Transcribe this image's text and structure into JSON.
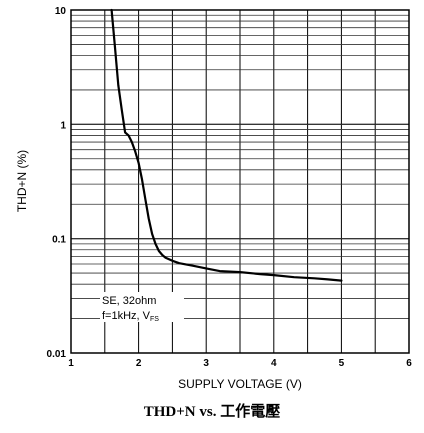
{
  "caption": "THD+N vs. 工作電壓",
  "chart_data": {
    "type": "line",
    "xlabel": "SUPPLY VOLTAGE (V)",
    "ylabel": "THD+N (%)",
    "xlim": [
      1,
      6
    ],
    "ylim": [
      0.01,
      10
    ],
    "yscale": "log",
    "xticks": [
      "1",
      "2",
      "3",
      "4",
      "5",
      "6"
    ],
    "yticks": [
      "0.01",
      "0.1",
      "1",
      "10"
    ],
    "grid": true,
    "annotation": {
      "line1": "SE, 32ohm",
      "line2_prefix": "f=1kHz, V",
      "line2_subscript": "FS"
    },
    "series": [
      {
        "x": [
          1.6,
          1.65,
          1.7,
          1.75,
          1.8,
          1.85,
          1.9,
          1.95,
          2.0,
          2.05,
          2.1,
          2.15,
          2.2,
          2.25,
          2.3,
          2.35,
          2.4,
          2.5,
          2.6,
          2.8,
          3.0,
          3.2,
          3.5,
          3.8,
          4.0,
          4.3,
          4.6,
          4.8,
          5.0
        ],
        "values": [
          10,
          4.8,
          2.2,
          1.35,
          0.85,
          0.8,
          0.7,
          0.58,
          0.46,
          0.33,
          0.22,
          0.15,
          0.11,
          0.09,
          0.078,
          0.072,
          0.068,
          0.064,
          0.061,
          0.058,
          0.055,
          0.052,
          0.051,
          0.049,
          0.048,
          0.046,
          0.045,
          0.044,
          0.043
        ]
      }
    ]
  }
}
